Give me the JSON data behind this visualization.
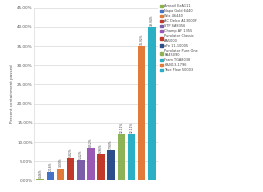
{
  "values": [
    0.46,
    2.16,
    3.09,
    5.82,
    5.42,
    8.52,
    6.96,
    7.9,
    12.11,
    12.11,
    34.92,
    39.94
  ],
  "bar_colors": [
    "#8cb34a",
    "#4472c4",
    "#e07b39",
    "#c0392b",
    "#7b5ea7",
    "#9b59b6",
    "#c0392b",
    "#2c4f8c",
    "#8db356",
    "#2bafc4",
    "#e07b39",
    "#2bafc4"
  ],
  "bar_labels": [
    "0.46%",
    "2.16%",
    "3.09%",
    "5.82%",
    "5.42%",
    "8.52%",
    "6.96%",
    "7.90%",
    "12.11%",
    "12.11%",
    "34.92%",
    "39.94%"
  ],
  "legend_labels": [
    "Amsoil EaA111",
    "Napa Gold 6440",
    "Wix 46440",
    "AC Delco A13000F",
    "STP SA8356",
    "Champ AF 1355",
    "Purolator Classic\nAA5000",
    "aFe 11-10005",
    "Purolator Pure One\nPA45090",
    "Fram TGA8038",
    "K&N13-1796",
    "True Flow 50003"
  ],
  "legend_colors": [
    "#8cb34a",
    "#4472c4",
    "#e07b39",
    "#c0392b",
    "#7b5ea7",
    "#9b59b6",
    "#c0392b",
    "#2c4f8c",
    "#8db356",
    "#2bafc4",
    "#e07b39",
    "#2bafc4"
  ],
  "ylabel": "Percent containment passed",
  "ylim": [
    0,
    45
  ],
  "yticks": [
    0,
    5,
    10,
    15,
    20,
    25,
    30,
    35,
    40,
    45
  ],
  "ytick_labels": [
    "0.00%",
    "5.00%",
    "10.00%",
    "15.00%",
    "20.00%",
    "25.00%",
    "30.00%",
    "35.00%",
    "40.00%",
    "45.00%"
  ],
  "background_color": "#ffffff",
  "grid_color": "#d0d0d0"
}
